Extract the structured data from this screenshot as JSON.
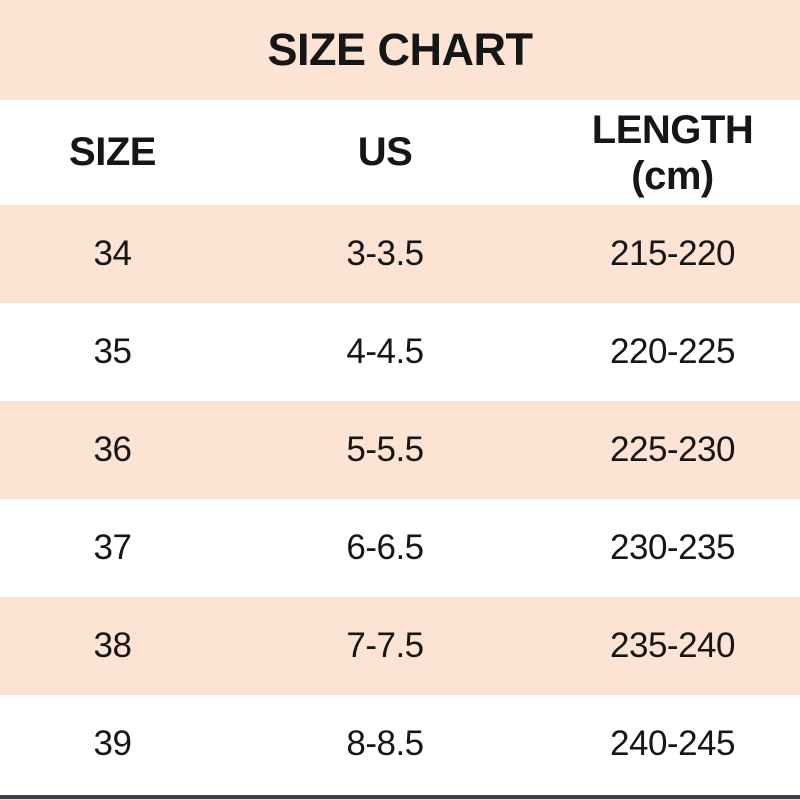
{
  "title": "SIZE CHART",
  "table": {
    "columns": [
      {
        "key": "size",
        "label": "SIZE"
      },
      {
        "key": "us",
        "label": "US"
      },
      {
        "key": "length",
        "label": "LENGTH",
        "sublabel": "(cm)"
      }
    ],
    "rows": [
      {
        "size": "34",
        "us": "3-3.5",
        "length": "215-220"
      },
      {
        "size": "35",
        "us": "4-4.5",
        "length": "220-225"
      },
      {
        "size": "36",
        "us": "5-5.5",
        "length": "225-230"
      },
      {
        "size": "37",
        "us": "6-6.5",
        "length": "230-235"
      },
      {
        "size": "38",
        "us": "7-7.5",
        "length": "235-240"
      },
      {
        "size": "39",
        "us": "8-8.5",
        "length": "240-245"
      }
    ]
  },
  "colors": {
    "band_pink": "#fce3d3",
    "row_white": "#ffffff",
    "text": "#161616",
    "bottom_divider": "#3b4149"
  }
}
